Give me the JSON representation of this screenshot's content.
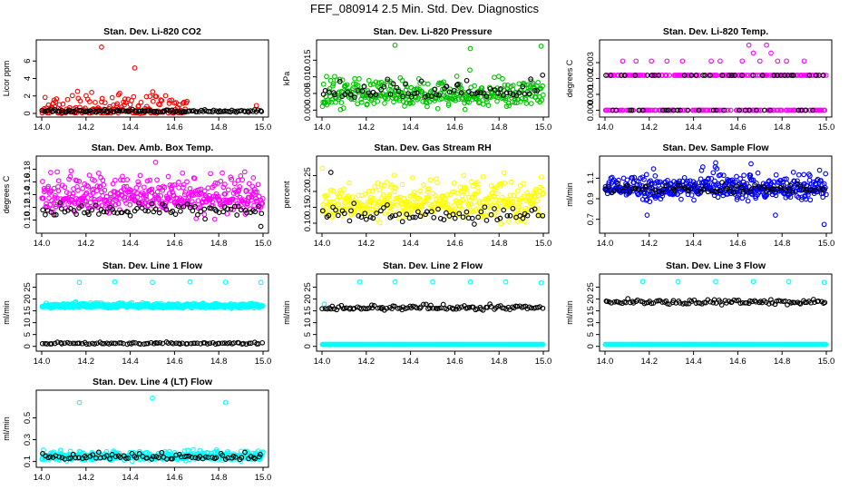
{
  "figure_title": "FEF_080914  2.5 Min. Std. Dev. Diagnostics",
  "chart_data": [
    {
      "type": "scatter",
      "title": "Stan. Dev. Li-820 CO2",
      "ylabel": "Licor ppm",
      "xlim": [
        14.0,
        15.0
      ],
      "ylim": [
        0,
        8
      ],
      "xticks": [
        14.0,
        14.2,
        14.4,
        14.6,
        14.8,
        15.0
      ],
      "xtick_labels": [
        "14.0",
        "14.2",
        "14.4",
        "14.6",
        "14.8",
        "15.0"
      ],
      "yticks": [
        0,
        2,
        4,
        6
      ],
      "ytick_labels": [
        "0",
        "2",
        "4",
        "6"
      ],
      "series": [
        {
          "color": "#ff0000",
          "x_range": [
            14.0,
            14.66
          ],
          "base": 0.5,
          "spread": 1.4,
          "n": 160,
          "outliers": [
            {
              "x": 14.27,
              "y": 7.6
            },
            {
              "x": 14.42,
              "y": 5.2
            },
            {
              "x": 14.97,
              "y": 0.9
            }
          ]
        },
        {
          "color": "#000000",
          "x_range": [
            14.0,
            15.0
          ],
          "base": 0.25,
          "spread": 0.15,
          "n": 120,
          "outliers": []
        }
      ]
    },
    {
      "type": "scatter",
      "title": "Stan. Dev. Li-820 Pressure",
      "ylabel": "kPa",
      "xlim": [
        14.0,
        15.0
      ],
      "ylim": [
        -0.001,
        0.02
      ],
      "xticks": [
        14.0,
        14.2,
        14.4,
        14.6,
        14.8,
        15.0
      ],
      "xtick_labels": [
        "14.0",
        "14.2",
        "14.4",
        "14.6",
        "14.8",
        "15.0"
      ],
      "yticks": [
        0.0,
        0.005,
        0.01,
        0.015
      ],
      "ytick_labels": [
        "0.000",
        "0.005",
        "0.010",
        "0.015"
      ],
      "series": [
        {
          "color": "#00c000",
          "x_range": [
            14.0,
            15.0
          ],
          "base": 0.0045,
          "spread": 0.0045,
          "n": 360,
          "outliers": [
            {
              "x": 14.33,
              "y": 0.0195
            },
            {
              "x": 14.67,
              "y": 0.0185
            },
            {
              "x": 14.99,
              "y": 0.0192
            }
          ]
        },
        {
          "color": "#000000",
          "x_range": [
            14.0,
            15.0
          ],
          "base": 0.0055,
          "spread": 0.003,
          "n": 70,
          "outliers": []
        }
      ]
    },
    {
      "type": "scatter",
      "title": "Stan. Dev. Li-820 Temp.",
      "ylabel": "degrees C",
      "xlim": [
        14.0,
        15.0
      ],
      "ylim": [
        -0.0002,
        0.0042
      ],
      "xticks": [
        14.0,
        14.2,
        14.4,
        14.6,
        14.8,
        15.0
      ],
      "xtick_labels": [
        "14.0",
        "14.2",
        "14.4",
        "14.6",
        "14.8",
        "15.0"
      ],
      "yticks": [
        0.0,
        0.001,
        0.002,
        0.003
      ],
      "ytick_labels": [
        "0.000",
        "0.001",
        "0.002",
        "0.003"
      ],
      "series": [
        {
          "color": "#ff00ff",
          "x_range": [
            14.0,
            15.0
          ],
          "levels": [
            0.0,
            0.0022
          ],
          "n": 260,
          "outliers": [
            {
              "x": 14.08,
              "y": 0.0031
            },
            {
              "x": 14.14,
              "y": 0.0031
            },
            {
              "x": 14.21,
              "y": 0.0031
            },
            {
              "x": 14.28,
              "y": 0.0031
            },
            {
              "x": 14.35,
              "y": 0.0031
            },
            {
              "x": 14.48,
              "y": 0.0031
            },
            {
              "x": 14.52,
              "y": 0.0031
            },
            {
              "x": 14.62,
              "y": 0.0031
            },
            {
              "x": 14.65,
              "y": 0.0041
            },
            {
              "x": 14.67,
              "y": 0.0036
            },
            {
              "x": 14.7,
              "y": 0.0031
            },
            {
              "x": 14.73,
              "y": 0.0041
            },
            {
              "x": 14.75,
              "y": 0.0036
            },
            {
              "x": 14.78,
              "y": 0.0031
            },
            {
              "x": 14.82,
              "y": 0.0031
            },
            {
              "x": 14.9,
              "y": 0.0031
            }
          ]
        },
        {
          "color": "#000000",
          "x_range": [
            14.0,
            15.0
          ],
          "levels": [
            0.0,
            0.0022
          ],
          "n": 60,
          "outliers": []
        }
      ]
    },
    {
      "type": "scatter",
      "title": "Stan. Dev. Amb. Box Temp.",
      "ylabel": "degrees C",
      "xlim": [
        14.0,
        15.0
      ],
      "ylim": [
        0.085,
        0.195
      ],
      "xticks": [
        14.0,
        14.2,
        14.4,
        14.6,
        14.8,
        15.0
      ],
      "xtick_labels": [
        "14.0",
        "14.2",
        "14.4",
        "14.6",
        "14.8",
        "15.0"
      ],
      "yticks": [
        0.1,
        0.12,
        0.14,
        0.16,
        0.18
      ],
      "ytick_labels": [
        "0.10",
        "0.12",
        "0.14",
        "0.16",
        "0.18"
      ],
      "series": [
        {
          "color": "#ff00ff",
          "x_range": [
            14.0,
            15.0
          ],
          "base": 0.135,
          "spread": 0.028,
          "n": 420,
          "outliers": []
        },
        {
          "color": "#000000",
          "x_range": [
            14.0,
            15.0
          ],
          "base": 0.114,
          "spread": 0.01,
          "n": 80,
          "outliers": [
            {
              "x": 14.99,
              "y": 0.09
            }
          ]
        }
      ]
    },
    {
      "type": "scatter",
      "title": "Stan. Dev. Gas Stream RH",
      "ylabel": "percent",
      "xlim": [
        14.0,
        15.0
      ],
      "ylim": [
        0.08,
        0.3
      ],
      "xticks": [
        14.0,
        14.2,
        14.4,
        14.6,
        14.8,
        15.0
      ],
      "xtick_labels": [
        "14.0",
        "14.2",
        "14.4",
        "14.6",
        "14.8",
        "15.0"
      ],
      "yticks": [
        0.1,
        0.15,
        0.2,
        0.25
      ],
      "ytick_labels": [
        "0.10",
        "0.15",
        "0.20",
        "0.25"
      ],
      "series": [
        {
          "color": "#ffff00",
          "x_range": [
            14.0,
            15.0
          ],
          "base": 0.16,
          "spread": 0.06,
          "n": 420,
          "outliers": []
        },
        {
          "color": "#000000",
          "x_range": [
            14.0,
            15.0
          ],
          "base": 0.125,
          "spread": 0.03,
          "n": 70,
          "outliers": [
            {
              "x": 14.04,
              "y": 0.26
            }
          ]
        }
      ]
    },
    {
      "type": "scatter",
      "title": "Stan. Dev. Sample Flow",
      "ylabel": "ml/min",
      "xlim": [
        14.0,
        15.0
      ],
      "ylim": [
        0.6,
        1.28
      ],
      "xticks": [
        14.0,
        14.2,
        14.4,
        14.6,
        14.8,
        15.0
      ],
      "xtick_labels": [
        "14.0",
        "14.2",
        "14.4",
        "14.6",
        "14.8",
        "15.0"
      ],
      "yticks": [
        0.7,
        0.9,
        1.1
      ],
      "ytick_labels": [
        "0.7",
        "0.9",
        "1.1"
      ],
      "series": [
        {
          "color": "#0000ff",
          "x_range": [
            14.0,
            15.0
          ],
          "base": 1.0,
          "spread": 0.12,
          "n": 480,
          "outliers": [
            {
              "x": 14.5,
              "y": 1.25
            },
            {
              "x": 14.66,
              "y": 1.24
            },
            {
              "x": 14.99,
              "y": 0.65
            },
            {
              "x": 14.19,
              "y": 0.74
            },
            {
              "x": 14.77,
              "y": 0.74
            }
          ]
        },
        {
          "color": "#000000",
          "x_range": [
            14.0,
            15.0
          ],
          "base": 0.99,
          "spread": 0.05,
          "n": 80,
          "outliers": []
        }
      ]
    },
    {
      "type": "scatter",
      "title": "Stan. Dev. Line 1 Flow",
      "ylabel": "ml/min",
      "xlim": [
        14.0,
        15.0
      ],
      "ylim": [
        -0.5,
        29
      ],
      "xticks": [
        14.0,
        14.2,
        14.4,
        14.6,
        14.8,
        15.0
      ],
      "xtick_labels": [
        "14.0",
        "14.2",
        "14.4",
        "14.6",
        "14.8",
        "15.0"
      ],
      "yticks": [
        0,
        5,
        10,
        15,
        20,
        25
      ],
      "ytick_labels": [
        "0",
        "5",
        "10",
        "15",
        "20",
        "25"
      ],
      "series": [
        {
          "color": "#00ffff",
          "x_range": [
            14.0,
            15.0
          ],
          "base": 17.0,
          "spread": 1.0,
          "n": 520,
          "outliers": [
            {
              "x": 14.17,
              "y": 27.0
            },
            {
              "x": 14.33,
              "y": 27.2
            },
            {
              "x": 14.5,
              "y": 27.0
            },
            {
              "x": 14.67,
              "y": 27.2
            },
            {
              "x": 14.83,
              "y": 27.1
            },
            {
              "x": 14.99,
              "y": 27.0
            }
          ]
        },
        {
          "color": "#000000",
          "x_range": [
            14.0,
            15.0
          ],
          "base": 1.2,
          "spread": 0.4,
          "n": 90,
          "outliers": []
        }
      ]
    },
    {
      "type": "scatter",
      "title": "Stan. Dev. Line 2 Flow",
      "ylabel": "ml/min",
      "xlim": [
        14.0,
        15.0
      ],
      "ylim": [
        -0.5,
        29
      ],
      "xticks": [
        14.0,
        14.2,
        14.4,
        14.6,
        14.8,
        15.0
      ],
      "xtick_labels": [
        "14.0",
        "14.2",
        "14.4",
        "14.6",
        "14.8",
        "15.0"
      ],
      "yticks": [
        0,
        5,
        10,
        15,
        20,
        25
      ],
      "ytick_labels": [
        "0",
        "5",
        "10",
        "15",
        "20",
        "25"
      ],
      "series": [
        {
          "color": "#00ffff",
          "x_range": [
            14.0,
            15.0
          ],
          "levels": [
            0.8
          ],
          "n": 360,
          "outliers": [
            {
              "x": 14.17,
              "y": 27.2
            },
            {
              "x": 14.33,
              "y": 27.2
            },
            {
              "x": 14.5,
              "y": 27.2
            },
            {
              "x": 14.67,
              "y": 27.2
            },
            {
              "x": 14.83,
              "y": 27.2
            },
            {
              "x": 14.99,
              "y": 26.8
            },
            {
              "x": 14.01,
              "y": 17.8
            }
          ]
        },
        {
          "color": "#000000",
          "x_range": [
            14.0,
            15.0
          ],
          "base": 16.2,
          "spread": 1.0,
          "n": 110,
          "outliers": []
        }
      ]
    },
    {
      "type": "scatter",
      "title": "Stan. Dev. Line 3 Flow",
      "ylabel": "ml/min",
      "xlim": [
        14.0,
        15.0
      ],
      "ylim": [
        -0.5,
        29
      ],
      "xticks": [
        14.0,
        14.2,
        14.4,
        14.6,
        14.8,
        15.0
      ],
      "xtick_labels": [
        "14.0",
        "14.2",
        "14.4",
        "14.6",
        "14.8",
        "15.0"
      ],
      "yticks": [
        0,
        5,
        10,
        15,
        20,
        25
      ],
      "ytick_labels": [
        "0",
        "5",
        "10",
        "15",
        "20",
        "25"
      ],
      "series": [
        {
          "color": "#00ffff",
          "x_range": [
            14.0,
            15.0
          ],
          "levels": [
            0.8
          ],
          "n": 360,
          "outliers": [
            {
              "x": 14.17,
              "y": 27.4
            },
            {
              "x": 14.33,
              "y": 27.4
            },
            {
              "x": 14.5,
              "y": 27.4
            },
            {
              "x": 14.67,
              "y": 27.4
            },
            {
              "x": 14.83,
              "y": 27.4
            },
            {
              "x": 14.99,
              "y": 27.0
            }
          ]
        },
        {
          "color": "#000000",
          "x_range": [
            14.0,
            15.0
          ],
          "base": 18.6,
          "spread": 1.2,
          "n": 110,
          "outliers": []
        }
      ]
    },
    {
      "type": "scatter",
      "title": "Stan. Dev. Line 4 (LT) Flow",
      "ylabel": "ml/min",
      "xlim": [
        14.0,
        15.0
      ],
      "ylim": [
        0.08,
        0.72
      ],
      "xticks": [
        14.0,
        14.2,
        14.4,
        14.6,
        14.8,
        15.0
      ],
      "xtick_labels": [
        "14.0",
        "14.2",
        "14.4",
        "14.6",
        "14.8",
        "15.0"
      ],
      "yticks": [
        0.1,
        0.3,
        0.5
      ],
      "ytick_labels": [
        "0.1",
        "0.3",
        "0.5"
      ],
      "series": [
        {
          "color": "#00ffff",
          "x_range": [
            14.0,
            15.0
          ],
          "base": 0.145,
          "spread": 0.04,
          "n": 420,
          "outliers": [
            {
              "x": 14.17,
              "y": 0.64
            },
            {
              "x": 14.5,
              "y": 0.68
            },
            {
              "x": 14.83,
              "y": 0.64
            }
          ]
        },
        {
          "color": "#000000",
          "x_range": [
            14.0,
            15.0
          ],
          "base": 0.14,
          "spread": 0.03,
          "n": 80,
          "outliers": []
        }
      ]
    }
  ]
}
